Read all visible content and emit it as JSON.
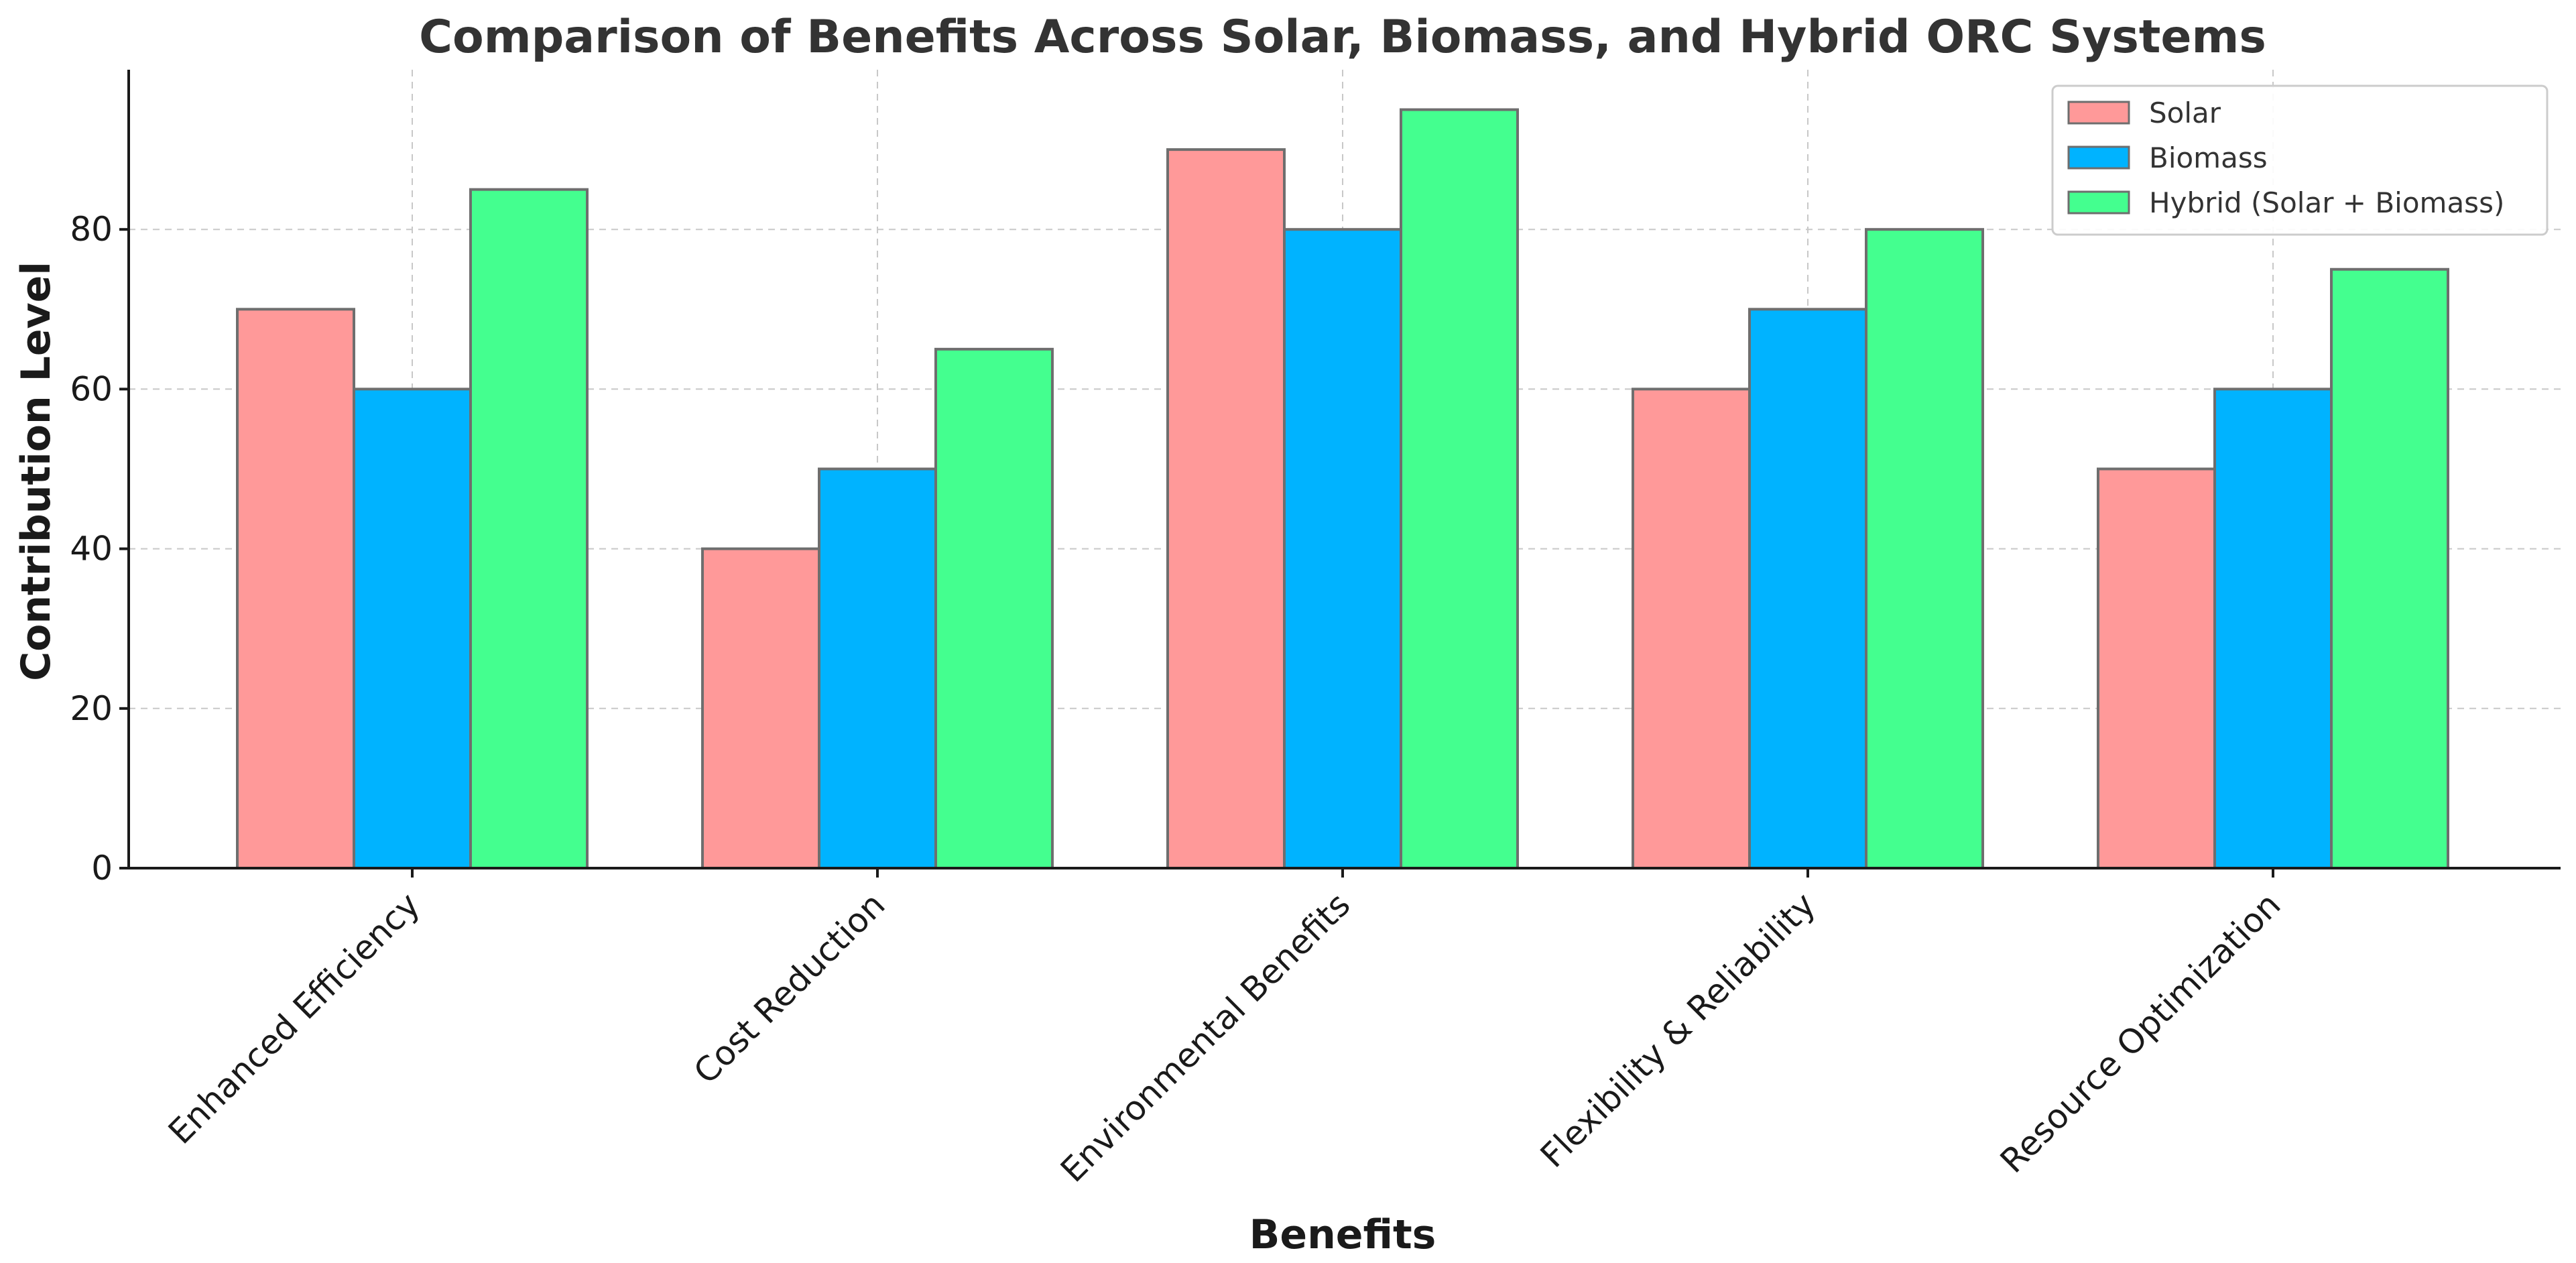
{
  "chart_data": {
    "type": "bar",
    "title": "Comparison of Benefits Across Solar, Biomass, and Hybrid ORC Systems",
    "xlabel": "Benefits",
    "ylabel": "Contribution Level",
    "categories": [
      "Enhanced Efficiency",
      "Cost Reduction",
      "Environmental Benefits",
      "Flexibility & Reliability",
      "Resource Optimization"
    ],
    "series": [
      {
        "name": "Solar",
        "color": "#ff9999",
        "values": [
          70,
          40,
          90,
          60,
          50
        ]
      },
      {
        "name": "Biomass",
        "color": "#00b3ff",
        "values": [
          60,
          50,
          80,
          70,
          60
        ]
      },
      {
        "name": "Hybrid (Solar + Biomass)",
        "color": "#44ff8f",
        "values": [
          85,
          65,
          95,
          80,
          75
        ]
      }
    ],
    "ylim": [
      0,
      100
    ],
    "yticks": [
      0,
      20,
      40,
      60,
      80
    ],
    "grid": true,
    "legend_position": "top-right"
  }
}
